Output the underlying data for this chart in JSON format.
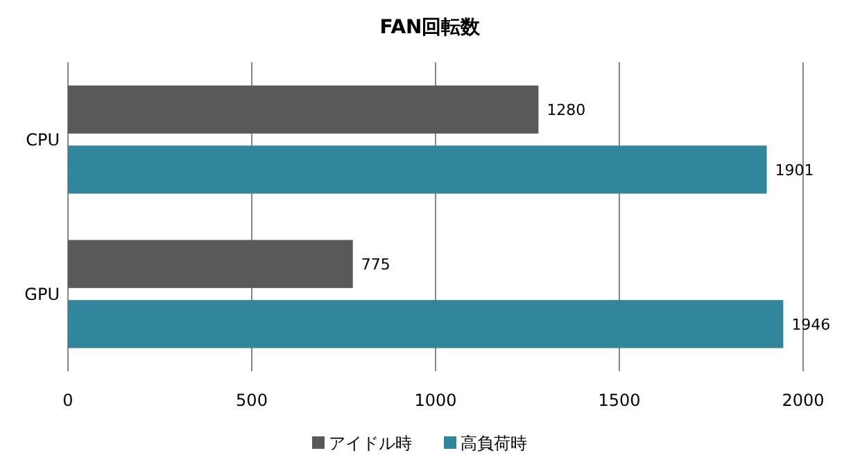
{
  "chart_data": {
    "type": "bar",
    "title": "FAN回転数",
    "orientation": "horizontal",
    "categories": [
      "CPU",
      "GPU"
    ],
    "series": [
      {
        "name": "アイドル時",
        "color": "#595959",
        "values": [
          1280,
          775
        ]
      },
      {
        "name": "高負荷時",
        "color": "#31869b",
        "values": [
          1901,
          1946
        ]
      }
    ],
    "xlim": [
      0,
      2000
    ],
    "xticks": [
      0,
      500,
      1000,
      1500,
      2000
    ],
    "grid": "x",
    "legend": "bottom",
    "data_labels": true
  }
}
